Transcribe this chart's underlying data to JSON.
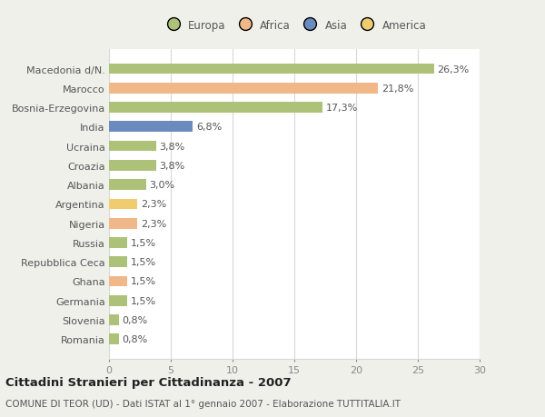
{
  "categories": [
    "Macedonia d/N.",
    "Marocco",
    "Bosnia-Erzegovina",
    "India",
    "Ucraina",
    "Croazia",
    "Albania",
    "Argentina",
    "Nigeria",
    "Russia",
    "Repubblica Ceca",
    "Ghana",
    "Germania",
    "Slovenia",
    "Romania"
  ],
  "values": [
    26.3,
    21.8,
    17.3,
    6.8,
    3.8,
    3.8,
    3.0,
    2.3,
    2.3,
    1.5,
    1.5,
    1.5,
    1.5,
    0.8,
    0.8
  ],
  "labels": [
    "26,3%",
    "21,8%",
    "17,3%",
    "6,8%",
    "3,8%",
    "3,8%",
    "3,0%",
    "2,3%",
    "2,3%",
    "1,5%",
    "1,5%",
    "1,5%",
    "1,5%",
    "0,8%",
    "0,8%"
  ],
  "colors": [
    "#adc178",
    "#f0b888",
    "#adc178",
    "#6b8bbf",
    "#adc178",
    "#adc178",
    "#adc178",
    "#f0cc70",
    "#f0b888",
    "#adc178",
    "#adc178",
    "#f0b888",
    "#adc178",
    "#adc178",
    "#adc178"
  ],
  "legend_labels": [
    "Europa",
    "Africa",
    "Asia",
    "America"
  ],
  "legend_colors": [
    "#adc178",
    "#f0b888",
    "#6b8bbf",
    "#f0cc70"
  ],
  "xlim": [
    0,
    30
  ],
  "xticks": [
    0,
    5,
    10,
    15,
    20,
    25,
    30
  ],
  "title_main": "Cittadini Stranieri per Cittadinanza - 2007",
  "title_sub": "COMUNE DI TEOR (UD) - Dati ISTAT al 1° gennaio 2007 - Elaborazione TUTTITALIA.IT",
  "fig_bg": "#f0f0eb",
  "plot_bg": "#ffffff",
  "grid_color": "#d8d8d8",
  "bar_label_fontsize": 8,
  "tick_label_fontsize": 8,
  "title_fontsize": 9.5,
  "subtitle_fontsize": 7.5,
  "legend_fontsize": 8.5,
  "bar_height": 0.55
}
